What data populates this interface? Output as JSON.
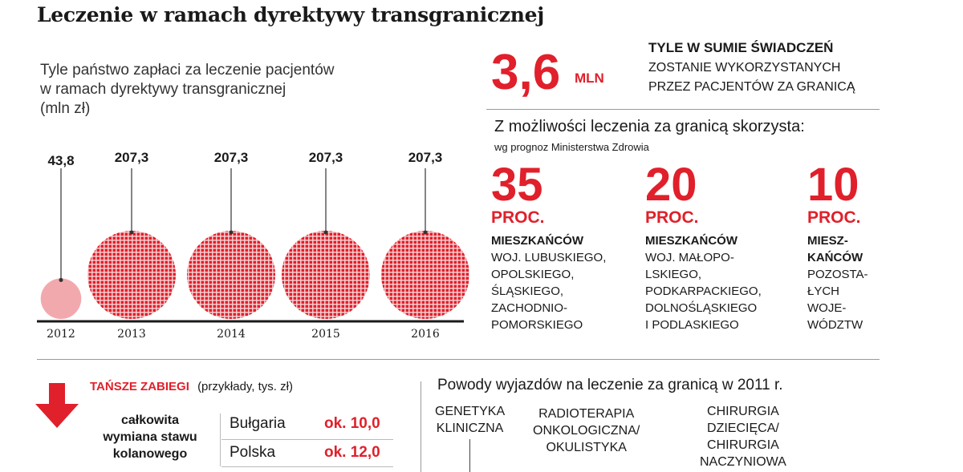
{
  "title": "Leczenie w ramach dyrektywy transgranicznej",
  "subtitle_lines": [
    "Tyle państwo zapłaci za leczenie pacjentów",
    "w ramach dyrektywy transgranicznej",
    "(mln zł)"
  ],
  "chart_data": {
    "type": "bubble",
    "title": "Tyle państwo zapłaci za leczenie pacjentów w ramach dyrektywy transgranicznej",
    "unit": "mln zł",
    "categories": [
      "2012",
      "2013",
      "2014",
      "2015",
      "2016"
    ],
    "values": [
      43.8,
      207.3,
      207.3,
      207.3,
      207.3
    ],
    "value_labels": [
      "43,8",
      "207,3",
      "207,3",
      "207,3",
      "207,3"
    ],
    "colors": {
      "first": "#f2a9ae",
      "rest": "#e0202b"
    }
  },
  "summary": {
    "value": "3,6",
    "unit": "MLN",
    "heading": "TYLE W SUMIE ŚWIADCZEŃ",
    "lines": [
      "ZOSTANIE WYKORZYSTANYCH",
      "PRZEZ PACJENTÓW ZA GRANICĄ"
    ]
  },
  "forecast": {
    "title": "Z możliwości leczenia za granicą skorzysta:",
    "source": "wg prognoz Ministerstwa Zdrowia",
    "groups": [
      {
        "percent": "35",
        "unit": "PROC.",
        "head": "MIESZKAŃCÓW",
        "lines": [
          "WOJ. LUBUSKIEGO,",
          "OPOLSKIEGO,",
          "ŚLĄSKIEGO,",
          "ZACHODNIO-",
          "POMORSKIEGO"
        ]
      },
      {
        "percent": "20",
        "unit": "PROC.",
        "head": "MIESZKAŃCÓW",
        "lines": [
          "WOJ. MAŁOPO-",
          "LSKIEGO,",
          "PODKARPACKIEGO,",
          "DOLNOŚLĄSKIEGO",
          "I PODLASKIEGO"
        ]
      },
      {
        "percent": "10",
        "unit": "PROC.",
        "head_lines": [
          "MIESZ-",
          "KAŃCÓW"
        ],
        "lines": [
          "POZOSTA-",
          "ŁYCH",
          "WOJE-",
          "WÓDZTW"
        ]
      }
    ]
  },
  "cheaper": {
    "title": "TAŃSZE ZABIEGI",
    "note": "(przykłady, tys. zł)",
    "procedure_lines": [
      "całkowita",
      "wymiana stawu",
      "kolanowego"
    ],
    "rows": [
      {
        "country": "Bułgaria",
        "price": "ok. 10,0"
      },
      {
        "country": "Polska",
        "price": "ok. 12,0"
      }
    ]
  },
  "reasons": {
    "title": "Powody wyjazdów na leczenie za granicą w 2011 r.",
    "items": [
      {
        "lines": [
          "GENETYKA",
          "KLINICZNA"
        ]
      },
      {
        "lines": [
          "RADIOTERAPIA",
          "ONKOLOGICZNA/",
          "OKULISTYKA"
        ]
      },
      {
        "lines": [
          "CHIRURGIA",
          "DZIECIĘCA/",
          "CHIRURGIA",
          "NACZYNIOWA"
        ]
      }
    ]
  }
}
